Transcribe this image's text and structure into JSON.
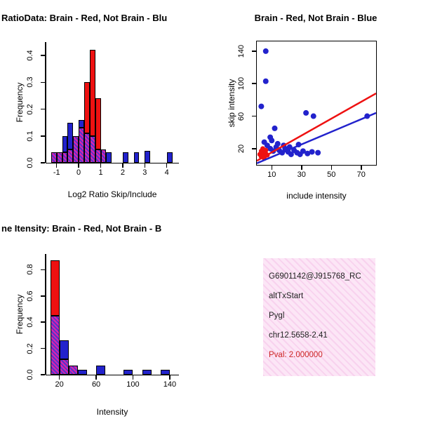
{
  "colors": {
    "red": "#ee1111",
    "blue": "#2222cc",
    "overlap_a": "#dd22aa",
    "overlap_b": "#5533cc",
    "axis": "#000000",
    "pval_red": "#cc2222",
    "info_bg_a": "#f8d2ee",
    "info_bg_b": "#fce6f6",
    "info_text": "#222222"
  },
  "chart_data": [
    {
      "id": "ratio_hist",
      "type": "bar",
      "frame": "lb",
      "title": "RatioData: Brain - Red, Not Brain - Blu",
      "xlabel": "Log2 Ratio Skip/Include",
      "ylabel": "Frequency",
      "xlim": [
        -1.5,
        4.55
      ],
      "ylim": [
        0,
        0.45
      ],
      "bin_width": 0.25,
      "grid": false,
      "legend": "title colors: Brain = red, Not Brain = blue, overlap = hatched magenta",
      "xticks": [
        {
          "v": -1,
          "t": "-1"
        },
        {
          "v": 0,
          "t": "0"
        },
        {
          "v": 1,
          "t": "1"
        },
        {
          "v": 2,
          "t": "2"
        },
        {
          "v": 3,
          "t": "3"
        },
        {
          "v": 4,
          "t": "4"
        }
      ],
      "yticks": [
        {
          "v": 0,
          "t": "0.0"
        },
        {
          "v": 0.1,
          "t": "0.1"
        },
        {
          "v": 0.2,
          "t": "0.2"
        },
        {
          "v": 0.3,
          "t": "0.3"
        },
        {
          "v": 0.4,
          "t": "0.4"
        }
      ],
      "series": [
        {
          "name": "Brain",
          "color": "red"
        },
        {
          "name": "Not Brain",
          "color": "blue"
        }
      ],
      "bins": [
        {
          "x": -1.25,
          "b": 0.04,
          "r": 0.04
        },
        {
          "x": -1.0,
          "b": 0.04,
          "r": 0.04
        },
        {
          "x": -0.75,
          "b": 0.1,
          "r": 0.04
        },
        {
          "x": -0.5,
          "b": 0.15,
          "r": 0.05
        },
        {
          "x": -0.25,
          "b": 0.1,
          "r": 0.1
        },
        {
          "x": 0.0,
          "b": 0.16,
          "r": 0.13
        },
        {
          "x": 0.25,
          "b": 0.11,
          "r": 0.3
        },
        {
          "x": 0.5,
          "b": 0.1,
          "r": 0.42
        },
        {
          "x": 0.75,
          "b": 0.05,
          "r": 0.24
        },
        {
          "x": 1.0,
          "b": 0.05,
          "r": 0.05
        },
        {
          "x": 1.25,
          "b": 0.04,
          "r": 0
        },
        {
          "x": 2.0,
          "b": 0.04,
          "r": 0
        },
        {
          "x": 2.5,
          "b": 0.04,
          "r": 0
        },
        {
          "x": 3.0,
          "b": 0.045,
          "r": 0
        },
        {
          "x": 4.0,
          "b": 0.04,
          "r": 0
        }
      ]
    },
    {
      "id": "scatter",
      "type": "scatter",
      "frame": "box",
      "title": "Brain - Red, Not Brain - Blue",
      "xlabel": "include intensity",
      "ylabel": "skip intensity",
      "xlim": [
        0,
        80
      ],
      "ylim": [
        0,
        152
      ],
      "grid": false,
      "xticks": [
        {
          "v": 10,
          "t": "10"
        },
        {
          "v": 30,
          "t": "30"
        },
        {
          "v": 50,
          "t": "50"
        },
        {
          "v": 70,
          "t": "70"
        }
      ],
      "yticks": [
        {
          "v": 20,
          "t": "20"
        },
        {
          "v": 60,
          "t": "60"
        },
        {
          "v": 100,
          "t": "100"
        },
        {
          "v": 140,
          "t": "140"
        }
      ],
      "series": [
        {
          "name": "not-brain",
          "color": "blue",
          "r": 4,
          "points": [
            [
              6,
              140
            ],
            [
              6,
              103
            ],
            [
              3,
              72
            ],
            [
              12,
              45
            ],
            [
              9,
              34
            ],
            [
              33,
              64
            ],
            [
              38,
              60
            ],
            [
              74,
              60
            ],
            [
              5,
              28
            ],
            [
              7,
              24
            ],
            [
              9,
              20
            ],
            [
              11,
              17
            ],
            [
              13,
              22
            ],
            [
              15,
              18
            ],
            [
              17,
              15
            ],
            [
              19,
              20
            ],
            [
              21,
              16
            ],
            [
              23,
              13
            ],
            [
              25,
              18
            ],
            [
              27,
              15
            ],
            [
              29,
              13
            ],
            [
              31,
              17
            ],
            [
              34,
              14
            ],
            [
              37,
              16
            ],
            [
              41,
              15
            ],
            [
              10,
              30
            ],
            [
              14,
              26
            ],
            [
              18,
              24
            ],
            [
              22,
              22
            ],
            [
              28,
              25
            ]
          ]
        },
        {
          "name": "brain",
          "color": "red",
          "r": 3.5,
          "points": [
            [
              2,
              13
            ],
            [
              3,
              10
            ],
            [
              4,
              15
            ],
            [
              5,
              11
            ],
            [
              6,
              14
            ],
            [
              3,
              17
            ],
            [
              5,
              8
            ],
            [
              7,
              12
            ],
            [
              4,
              20
            ],
            [
              6,
              18
            ]
          ]
        }
      ],
      "lines": [
        {
          "color": "blue",
          "x1": 0,
          "y1": 2,
          "x2": 80,
          "y2": 64
        },
        {
          "color": "red",
          "x1": 0,
          "y1": 5,
          "x2": 80,
          "y2": 88
        }
      ]
    },
    {
      "id": "gene_hist",
      "type": "bar",
      "frame": "lb",
      "title": "ne Itensity: Brain - Red, Not Brain - B",
      "xlabel": "Intensity",
      "ylabel": "Frequency",
      "xlim": [
        5,
        150
      ],
      "ylim": [
        0,
        0.92
      ],
      "bin_width": 10,
      "grid": false,
      "xticks": [
        {
          "v": 20,
          "t": "20"
        },
        {
          "v": 60,
          "t": "60"
        },
        {
          "v": 100,
          "t": "100"
        },
        {
          "v": 140,
          "t": "140"
        }
      ],
      "yticks": [
        {
          "v": 0,
          "t": "0.0"
        },
        {
          "v": 0.2,
          "t": "0.2"
        },
        {
          "v": 0.4,
          "t": "0.4"
        },
        {
          "v": 0.6,
          "t": "0.6"
        },
        {
          "v": 0.8,
          "t": "0.8"
        }
      ],
      "series": [
        {
          "name": "Brain",
          "color": "red"
        },
        {
          "name": "Not Brain",
          "color": "blue"
        }
      ],
      "bins": [
        {
          "x": 10,
          "b": 0.45,
          "r": 0.87
        },
        {
          "x": 20,
          "b": 0.26,
          "r": 0.12
        },
        {
          "x": 30,
          "b": 0.07,
          "r": 0.07
        },
        {
          "x": 40,
          "b": 0.04,
          "r": 0
        },
        {
          "x": 60,
          "b": 0.07,
          "r": 0
        },
        {
          "x": 90,
          "b": 0.035,
          "r": 0
        },
        {
          "x": 110,
          "b": 0.035,
          "r": 0
        },
        {
          "x": 130,
          "b": 0.035,
          "r": 0
        }
      ]
    }
  ],
  "info_box": {
    "line1": "G6901142@J915768_RC",
    "line2": "altTxStart",
    "line3": "Pygl",
    "line4": "chr12.5658-2.41",
    "pval": "Pval: 2.000000"
  }
}
